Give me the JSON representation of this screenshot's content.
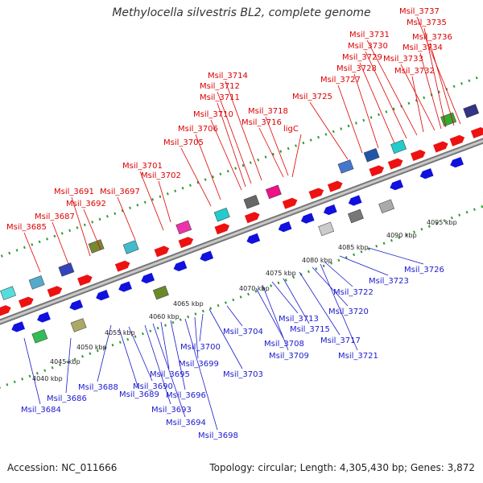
{
  "title": "Methylocella silvestris BL2, complete genome",
  "footer": {
    "accession": "Accession: NC_011666",
    "summary": "Topology: circular; Length: 4,305,430 bp; Genes: 3,872"
  },
  "colors": {
    "label_top": "#dd0000",
    "label_bottom": "#1a1acc",
    "cds_forward": "#ee1111",
    "cds_reverse": "#1111dd",
    "backbone": "#999999",
    "tick": "#227722"
  },
  "scale_ticks": [
    "4040 kbp",
    "4045 kbp",
    "4050 kbp",
    "4055 kbp",
    "4060 kbp",
    "4065 kbp",
    "4070 kbp",
    "4075 kbp",
    "4080 kbp",
    "4085 kbp",
    "4090 kbp",
    "4095 kbp"
  ],
  "top_labels": [
    "Msil_3685",
    "Msil_3687",
    "Msil_3691",
    "Msil_3692",
    "Msil_3697",
    "Msil_3701",
    "Msil_3702",
    "Msil_3705",
    "Msil_3706",
    "Msil_3710",
    "Msil_3711",
    "Msil_3712",
    "Msil_3714",
    "Msil_3716",
    "Msil_3718",
    "ligC",
    "Msil_3725",
    "Msil_3727",
    "Msil_3728",
    "Msil_3729",
    "Msil_3730",
    "Msil_3731",
    "Msil_3732",
    "Msil_3733",
    "Msil_3734",
    "Msil_3735",
    "Msil_3736",
    "Msil_3737"
  ],
  "bottom_labels": [
    "Msil_3684",
    "Msil_3686",
    "Msil_3688",
    "Msil_3689",
    "Msil_3690",
    "Msil_3693",
    "Msil_3694",
    "Msil_3695",
    "Msil_3696",
    "Msil_3698",
    "Msil_3699",
    "Msil_3700",
    "Msil_3703",
    "Msil_3704",
    "Msil_3708",
    "Msil_3709",
    "Msil_3713",
    "Msil_3715",
    "Msil_3717",
    "Msil_3720",
    "Msil_3721",
    "Msil_3722",
    "Msil_3723",
    "Msil_3726"
  ]
}
